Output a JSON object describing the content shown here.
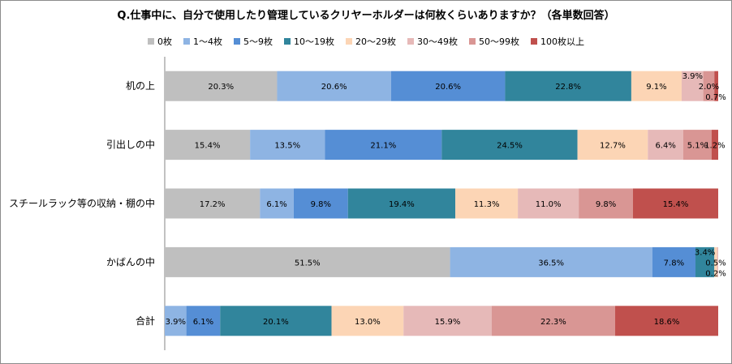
{
  "chart_data": {
    "type": "bar",
    "orientation": "horizontal",
    "stacked": "100%",
    "title": "Q.仕事中に、自分で使用したり管理しているクリヤーホルダーは何枚くらいありますか？（各単数回答）",
    "categories": [
      "机の上",
      "引出しの中",
      "スチールラック等の収納・棚の中",
      "かばんの中",
      "合計"
    ],
    "legend_position": "top",
    "series": [
      {
        "name": "0枚",
        "color": "#bfbfbf",
        "values": [
          20.3,
          15.4,
          17.2,
          51.5,
          0
        ]
      },
      {
        "name": "1～4枚",
        "color": "#8eb4e3",
        "values": [
          20.6,
          13.5,
          6.1,
          36.5,
          3.9
        ]
      },
      {
        "name": "5～9枚",
        "color": "#558ed5",
        "values": [
          20.6,
          21.1,
          9.8,
          7.8,
          6.1
        ]
      },
      {
        "name": "10～19枚",
        "color": "#31859c",
        "values": [
          22.8,
          24.5,
          19.4,
          3.4,
          20.1
        ]
      },
      {
        "name": "20～29枚",
        "color": "#fcd5b5",
        "values": [
          9.1,
          12.7,
          11.3,
          0.5,
          13.0
        ]
      },
      {
        "name": "30～49枚",
        "color": "#e6b9b8",
        "values": [
          3.9,
          6.4,
          11.0,
          0.2,
          15.9
        ]
      },
      {
        "name": "50～99枚",
        "color": "#d99694",
        "values": [
          2.0,
          5.1,
          9.8,
          0,
          22.3
        ]
      },
      {
        "name": "100枚以上",
        "color": "#c0504d",
        "values": [
          0.7,
          1.2,
          15.4,
          0,
          18.6
        ]
      }
    ],
    "data_labels": [
      [
        "20.3%",
        "20.6%",
        "20.6%",
        "22.8%",
        "9.1%",
        "3.9%",
        "2.0%",
        "0.7%"
      ],
      [
        "15.4%",
        "13.5%",
        "21.1%",
        "24.5%",
        "12.7%",
        "6.4%",
        "5.1%",
        "1.2%"
      ],
      [
        "17.2%",
        "6.1%",
        "9.8%",
        "19.4%",
        "11.3%",
        "11.0%",
        "9.8%",
        "15.4%"
      ],
      [
        "51.5%",
        "36.5%",
        "7.8%",
        "3.4%",
        "0.5%",
        "0.2%",
        "",
        ""
      ],
      [
        "",
        "3.9%",
        "6.1%",
        "20.1%",
        "13.0%",
        "15.9%",
        "22.3%",
        "18.6%"
      ]
    ]
  }
}
